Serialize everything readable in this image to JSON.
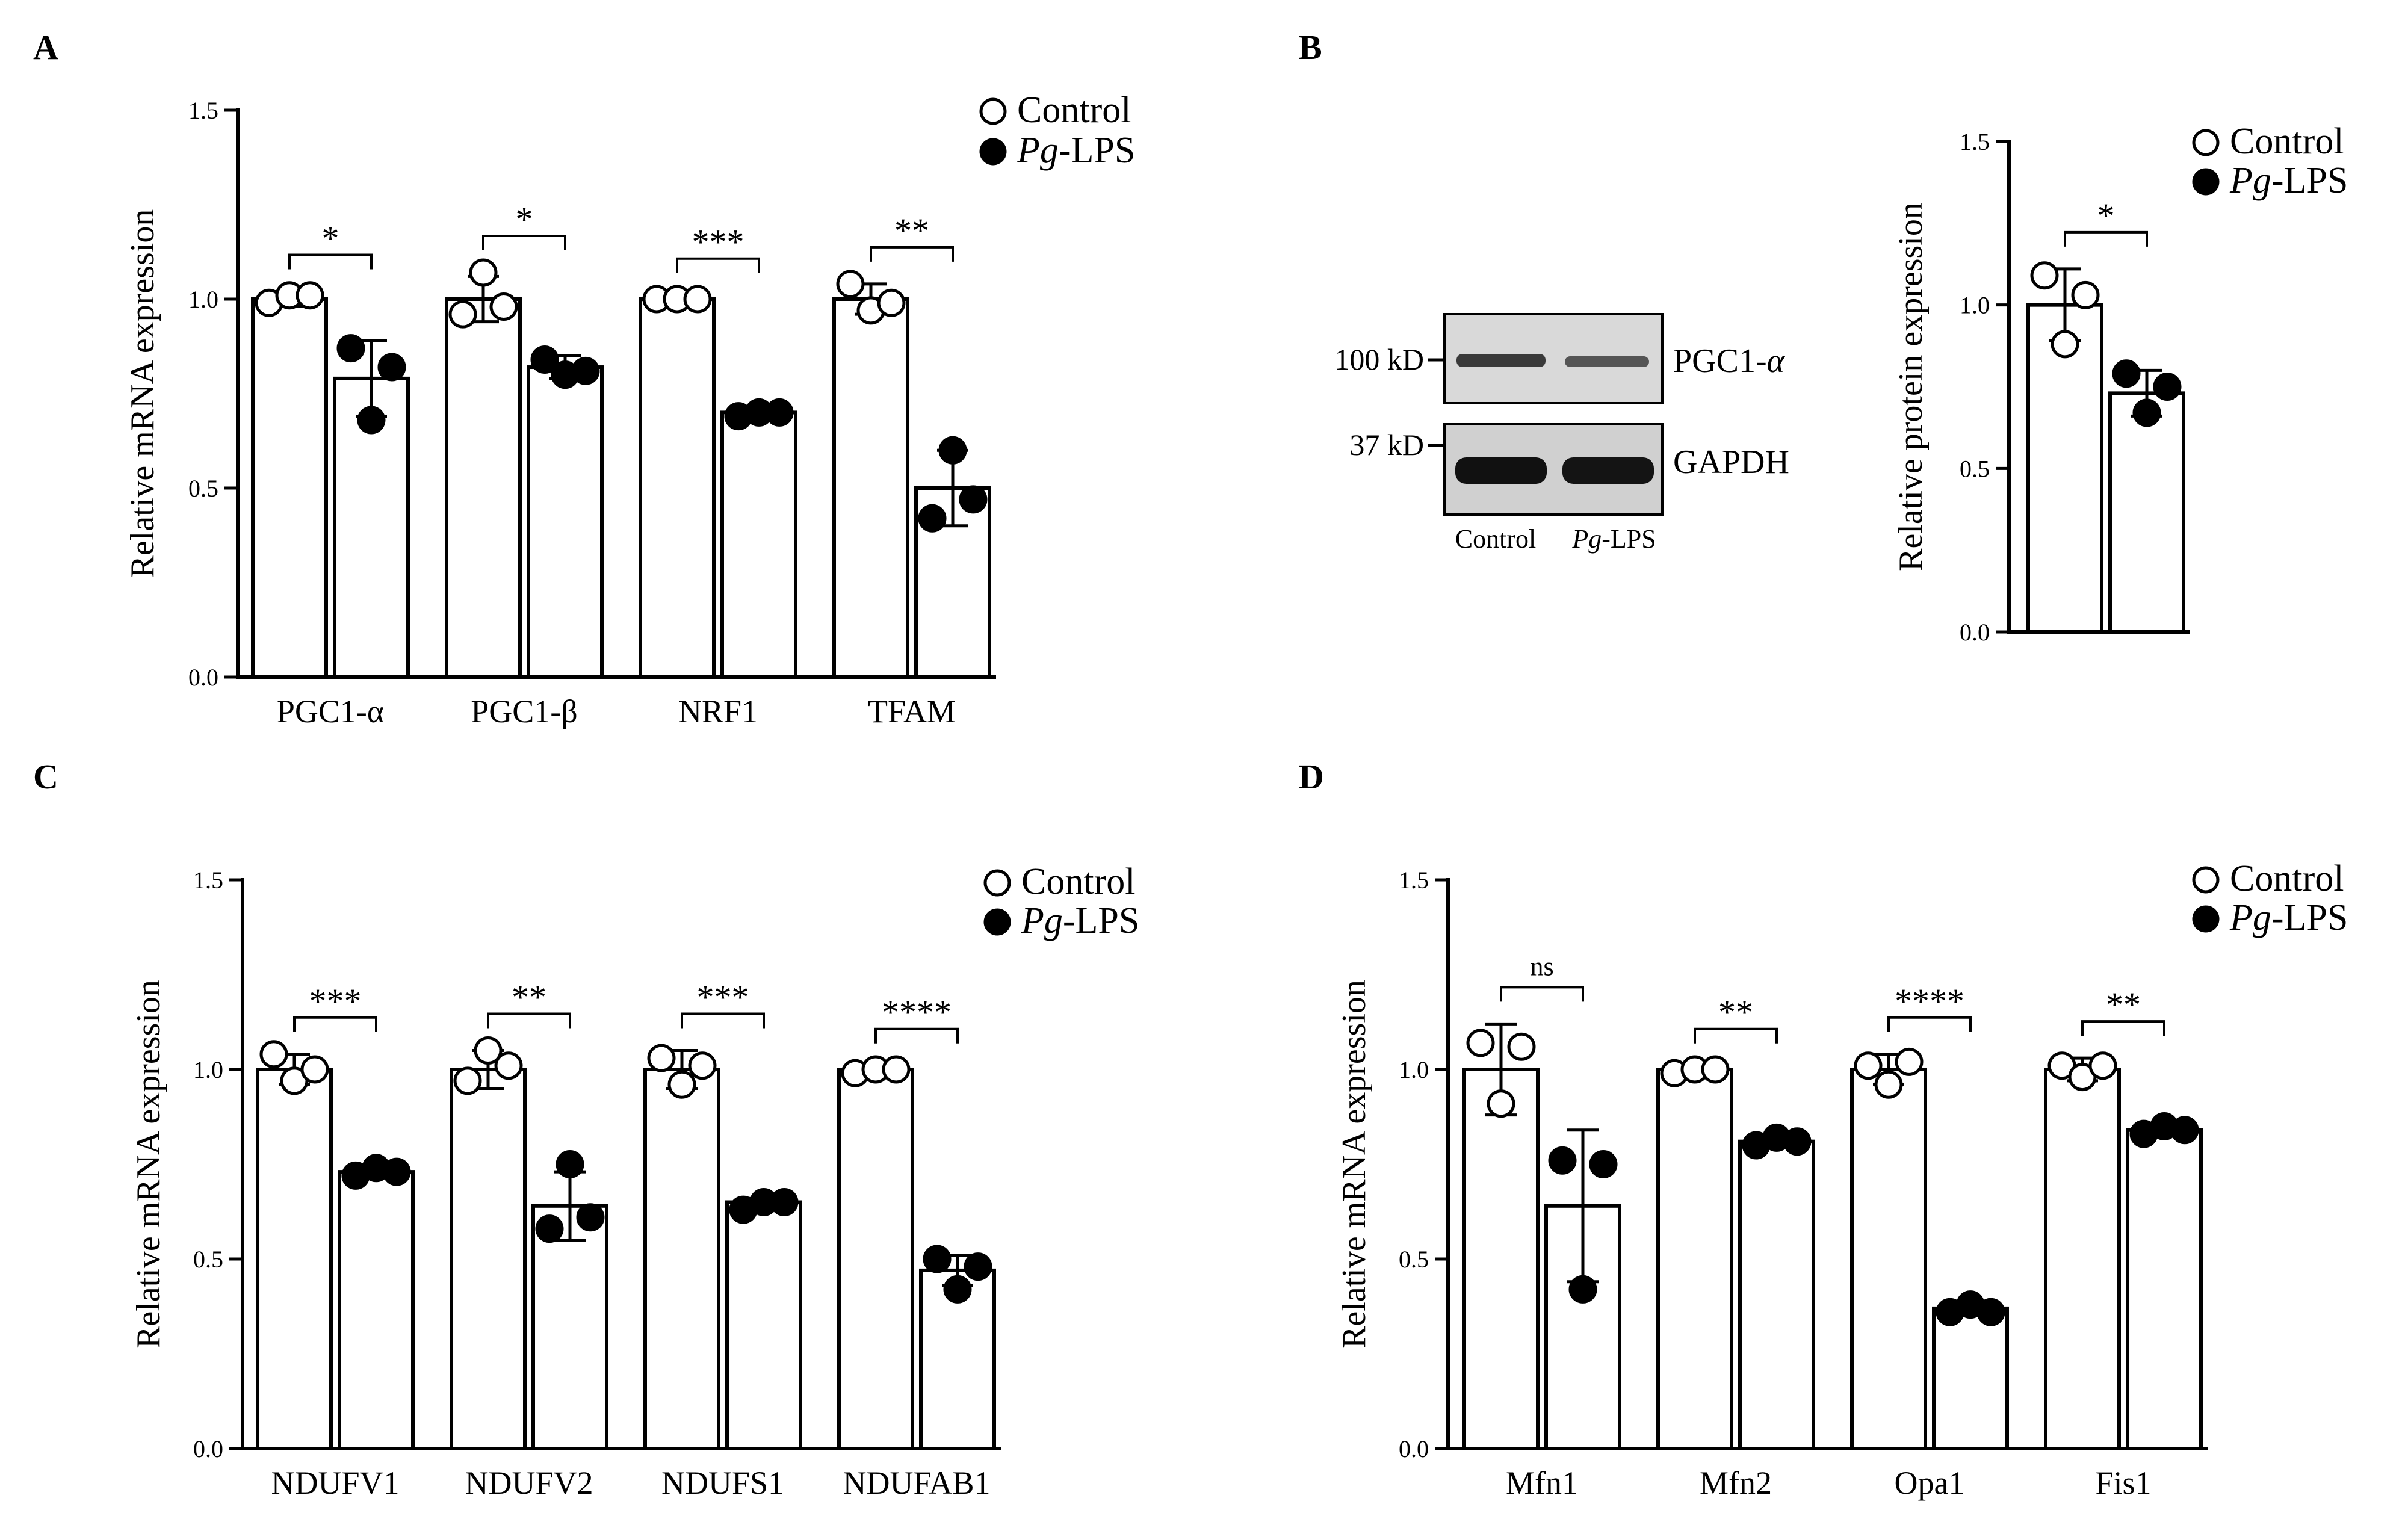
{
  "legend": {
    "control": "Control",
    "treated_italic": "Pg",
    "treated_rest": "-LPS"
  },
  "blot": {
    "band_top_label": "PGC1-",
    "band_top_greek": "α",
    "band_bottom_label": "GAPDH",
    "marker_top": "100 kD",
    "marker_bottom": "37 kD",
    "lane_control": "Control",
    "lane_treated_italic": "Pg",
    "lane_treated_rest": "-LPS"
  },
  "chart_data": [
    {
      "panel": "A",
      "type": "bar",
      "ylabel": "Relative mRNA expression",
      "ylim": [
        0,
        1.5
      ],
      "yticks": [
        "0.0",
        "0.5",
        "1.0",
        "1.5"
      ],
      "categories": [
        "PGC1-α",
        "PGC1-β",
        "NRF1",
        "TFAM"
      ],
      "series": [
        {
          "name": "Control",
          "values": [
            1.0,
            1.0,
            1.0,
            1.0
          ],
          "errors": [
            0.02,
            0.06,
            0.01,
            0.04
          ],
          "points": [
            [
              0.99,
              1.01,
              1.01
            ],
            [
              0.96,
              1.07,
              0.98
            ],
            [
              1.0,
              1.0,
              1.0
            ],
            [
              1.04,
              0.97,
              0.99
            ]
          ]
        },
        {
          "name": "Pg-LPS",
          "values": [
            0.79,
            0.82,
            0.7,
            0.5
          ],
          "errors": [
            0.1,
            0.03,
            0.01,
            0.1
          ],
          "points": [
            [
              0.87,
              0.68,
              0.82
            ],
            [
              0.84,
              0.8,
              0.81
            ],
            [
              0.69,
              0.7,
              0.7
            ],
            [
              0.42,
              0.6,
              0.47
            ]
          ]
        }
      ],
      "significance": [
        "*",
        "*",
        "***",
        "**"
      ]
    },
    {
      "panel": "B",
      "type": "bar",
      "ylabel": "Relative protein expression",
      "ylim": [
        0,
        1.5
      ],
      "yticks": [
        "0.0",
        "0.5",
        "1.0",
        "1.5"
      ],
      "categories": [
        ""
      ],
      "series": [
        {
          "name": "Control",
          "values": [
            1.0
          ],
          "errors": [
            0.11
          ],
          "points": [
            [
              1.09,
              0.88,
              1.03
            ]
          ]
        },
        {
          "name": "Pg-LPS",
          "values": [
            0.73
          ],
          "errors": [
            0.07
          ],
          "points": [
            [
              0.79,
              0.67,
              0.75
            ]
          ]
        }
      ],
      "significance": [
        "*"
      ]
    },
    {
      "panel": "C",
      "type": "bar",
      "ylabel": "Relative mRNA expression",
      "ylim": [
        0,
        1.5
      ],
      "yticks": [
        "0.0",
        "0.5",
        "1.0",
        "1.5"
      ],
      "categories": [
        "NDUFV1",
        "NDUFV2",
        "NDUFS1",
        "NDUFAB1"
      ],
      "series": [
        {
          "name": "Control",
          "values": [
            1.0,
            1.0,
            1.0,
            1.0
          ],
          "errors": [
            0.04,
            0.05,
            0.05,
            0.01
          ],
          "points": [
            [
              1.04,
              0.97,
              1.0
            ],
            [
              0.97,
              1.05,
              1.01
            ],
            [
              1.03,
              0.96,
              1.01
            ],
            [
              0.99,
              1.0,
              1.0
            ]
          ]
        },
        {
          "name": "Pg-LPS",
          "values": [
            0.73,
            0.64,
            0.65,
            0.47
          ],
          "errors": [
            0.01,
            0.09,
            0.01,
            0.04
          ],
          "points": [
            [
              0.72,
              0.74,
              0.73
            ],
            [
              0.58,
              0.75,
              0.61
            ],
            [
              0.63,
              0.65,
              0.65
            ],
            [
              0.5,
              0.42,
              0.48
            ]
          ]
        }
      ],
      "significance": [
        "***",
        "**",
        "***",
        "****"
      ]
    },
    {
      "panel": "D",
      "type": "bar",
      "ylabel": "Relative mRNA expression",
      "ylim": [
        0,
        1.5
      ],
      "yticks": [
        "0.0",
        "0.5",
        "1.0",
        "1.5"
      ],
      "categories": [
        "Mfn1",
        "Mfn2",
        "Opa1",
        "Fis1"
      ],
      "series": [
        {
          "name": "Control",
          "values": [
            1.0,
            1.0,
            1.0,
            1.0
          ],
          "errors": [
            0.12,
            0.01,
            0.04,
            0.03
          ],
          "points": [
            [
              1.07,
              0.91,
              1.06
            ],
            [
              0.99,
              1.0,
              1.0
            ],
            [
              1.01,
              0.96,
              1.02
            ],
            [
              1.01,
              0.98,
              1.01
            ]
          ]
        },
        {
          "name": "Pg-LPS",
          "values": [
            0.64,
            0.81,
            0.37,
            0.84
          ],
          "errors": [
            0.2,
            0.01,
            0.01,
            0.01
          ],
          "points": [
            [
              0.76,
              0.42,
              0.75
            ],
            [
              0.8,
              0.82,
              0.81
            ],
            [
              0.36,
              0.38,
              0.36
            ],
            [
              0.83,
              0.85,
              0.84
            ]
          ]
        }
      ],
      "significance": [
        "ns",
        "**",
        "****",
        "**"
      ]
    }
  ]
}
